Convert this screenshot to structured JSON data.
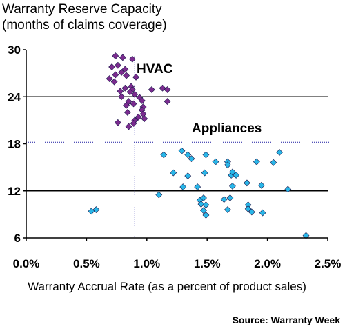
{
  "chart_data": {
    "type": "scatter",
    "title": "Warranty Reserve Capacity",
    "subtitle": "(months of claims coverage)",
    "xlabel": "Warranty Accrual Rate (as a percent of product sales)",
    "ylabel": "",
    "source": "Source: Warranty Week",
    "xlim": [
      0,
      2.5
    ],
    "ylim": [
      6,
      30
    ],
    "x_ticks": [
      "0.0%",
      "0.5%",
      "1.0%",
      "1.5%",
      "2.0%",
      "2.5%"
    ],
    "x_tick_values": [
      0,
      0.5,
      1.0,
      1.5,
      2.0,
      2.5
    ],
    "y_ticks": [
      "30",
      "24",
      "18",
      "12",
      "6"
    ],
    "y_tick_values": [
      30,
      24,
      18,
      12,
      6
    ],
    "gridlines_y": [
      12,
      24
    ],
    "reference_lines": {
      "x_avg": 0.9,
      "y_avg": 18.2
    },
    "series": [
      {
        "name": "HVAC",
        "color": "#7B2C8F",
        "points": [
          [
            0.74,
            29.2
          ],
          [
            0.8,
            29.0
          ],
          [
            0.88,
            28.8
          ],
          [
            0.76,
            28.0
          ],
          [
            0.71,
            27.8
          ],
          [
            0.82,
            27.5
          ],
          [
            0.79,
            27.1
          ],
          [
            0.74,
            26.8
          ],
          [
            0.83,
            26.7
          ],
          [
            0.91,
            26.5
          ],
          [
            0.69,
            26.3
          ],
          [
            0.73,
            25.9
          ],
          [
            0.87,
            25.3
          ],
          [
            0.82,
            25.1
          ],
          [
            0.88,
            24.9
          ],
          [
            1.04,
            24.9
          ],
          [
            1.13,
            25.1
          ],
          [
            1.17,
            24.9
          ],
          [
            0.78,
            24.7
          ],
          [
            0.86,
            24.6
          ],
          [
            0.9,
            24.3
          ],
          [
            0.79,
            24.0
          ],
          [
            0.94,
            23.9
          ],
          [
            0.96,
            23.5
          ],
          [
            0.85,
            23.4
          ],
          [
            1.17,
            23.4
          ],
          [
            0.89,
            23.1
          ],
          [
            0.83,
            22.9
          ],
          [
            0.97,
            22.7
          ],
          [
            0.96,
            22.3
          ],
          [
            0.84,
            22.0
          ],
          [
            0.97,
            21.8
          ],
          [
            0.93,
            21.4
          ],
          [
            0.98,
            21.2
          ],
          [
            0.9,
            21.0
          ],
          [
            0.76,
            20.7
          ],
          [
            0.89,
            20.6
          ],
          [
            0.85,
            20.2
          ]
        ]
      },
      {
        "name": "Appliances",
        "color": "#29B6E8",
        "points": [
          [
            0.54,
            9.4
          ],
          [
            0.58,
            9.6
          ],
          [
            1.1,
            11.5
          ],
          [
            1.14,
            16.6
          ],
          [
            1.22,
            14.3
          ],
          [
            1.29,
            17.1
          ],
          [
            1.3,
            12.5
          ],
          [
            1.34,
            16.6
          ],
          [
            1.34,
            13.9
          ],
          [
            1.37,
            16.1
          ],
          [
            1.42,
            12.5
          ],
          [
            1.44,
            10.8
          ],
          [
            1.45,
            10.3
          ],
          [
            1.47,
            11.1
          ],
          [
            1.47,
            9.5
          ],
          [
            1.48,
            14.3
          ],
          [
            1.49,
            16.6
          ],
          [
            1.49,
            10.2
          ],
          [
            1.49,
            8.9
          ],
          [
            1.57,
            15.7
          ],
          [
            1.64,
            10.9
          ],
          [
            1.67,
            15.7
          ],
          [
            1.67,
            15.3
          ],
          [
            1.67,
            9.6
          ],
          [
            1.69,
            11.1
          ],
          [
            1.7,
            14.0
          ],
          [
            1.71,
            14.4
          ],
          [
            1.71,
            12.6
          ],
          [
            1.74,
            14.0
          ],
          [
            1.83,
            13.0
          ],
          [
            1.84,
            10.2
          ],
          [
            1.84,
            9.7
          ],
          [
            1.87,
            9.3
          ],
          [
            1.91,
            15.7
          ],
          [
            1.95,
            12.7
          ],
          [
            1.96,
            9.2
          ],
          [
            2.05,
            15.6
          ],
          [
            2.1,
            16.9
          ],
          [
            2.17,
            12.2
          ],
          [
            2.32,
            6.3
          ]
        ]
      }
    ]
  }
}
